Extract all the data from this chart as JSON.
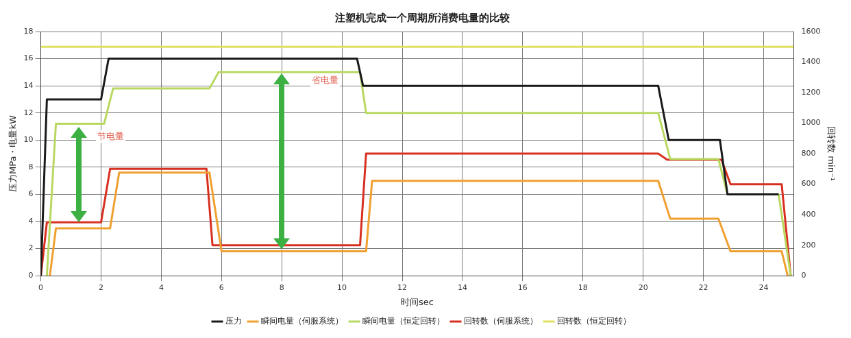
{
  "chart_data": {
    "type": "line",
    "title": "注塑机完成一个周期所消费电量的比较",
    "xlabel": "时间sec",
    "ylabel": "压力MPa・电量kW",
    "y2label": "回转数 min⁻¹",
    "xlim": [
      0,
      25
    ],
    "xticks": [
      0,
      2,
      4,
      6,
      8,
      10,
      12,
      14,
      16,
      18,
      20,
      22,
      24
    ],
    "ylim": [
      0,
      18
    ],
    "yticks": [
      0,
      2,
      4,
      6,
      8,
      10,
      12,
      14,
      16,
      18
    ],
    "y2lim": [
      0,
      1600
    ],
    "y2ticks": [
      0,
      200,
      400,
      600,
      800,
      1000,
      1200,
      1400,
      1600
    ],
    "grid": true,
    "legend": "bottom",
    "marker": "none",
    "line_style": "solid",
    "series": [
      {
        "name": "压力",
        "color": "#1a1a1a",
        "x": [
          0,
          0.2,
          2.0,
          2.25,
          10.5,
          10.7,
          20.5,
          20.85,
          22.55,
          22.8,
          24.5
        ],
        "values": [
          0,
          13,
          13,
          16,
          16,
          14,
          14,
          10,
          10,
          6,
          6
        ]
      },
      {
        "name": "瞬间电量（伺服系统）",
        "color": "#f0a030",
        "x": [
          0.3,
          0.5,
          2.3,
          2.6,
          5.6,
          6.0,
          10.8,
          11.0,
          20.5,
          20.9,
          22.5,
          22.9,
          24.6,
          24.8
        ],
        "values": [
          0,
          3.5,
          3.5,
          7.6,
          7.6,
          1.8,
          1.8,
          7,
          7,
          4.2,
          4.2,
          1.8,
          1.8,
          0
        ]
      },
      {
        "name": "瞬间电量（恒定回转）",
        "color": "#b8d860",
        "x": [
          0.2,
          0.5,
          2.1,
          2.4,
          5.6,
          5.9,
          10.6,
          10.8,
          20.5,
          20.9,
          22.5,
          22.8,
          24.5,
          24.9
        ],
        "values": [
          0,
          11.2,
          11.2,
          13.8,
          13.8,
          15,
          15,
          12,
          12,
          8.6,
          8.6,
          6,
          6,
          0
        ]
      },
      {
        "name": "回转数（伺服系统）",
        "color": "#d83020",
        "axis": "y2",
        "x": [
          0,
          0.2,
          2.0,
          2.3,
          5.5,
          5.7,
          10.6,
          10.8,
          20.5,
          20.8,
          22.6,
          22.9,
          24.6,
          24.9
        ],
        "values": [
          0,
          350,
          350,
          700,
          700,
          200,
          200,
          800,
          800,
          760,
          760,
          600,
          600,
          0
        ]
      },
      {
        "name": "回转数（恒定回转）",
        "color": "#e0e060",
        "axis": "y2",
        "x": [
          0,
          25
        ],
        "values": [
          1500,
          1500
        ]
      }
    ],
    "annotations": [
      "节电量",
      "省电量"
    ]
  }
}
